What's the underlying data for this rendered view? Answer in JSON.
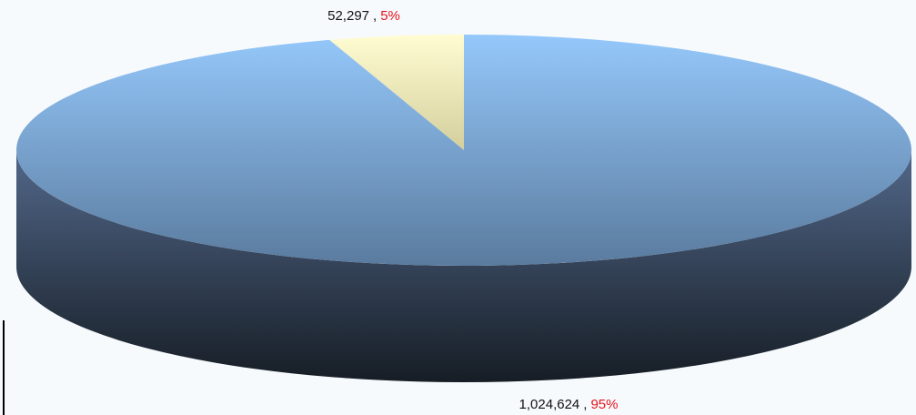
{
  "chart_data": {
    "type": "pie3d",
    "categories": [
      null,
      null
    ],
    "values": [
      52297,
      1024624
    ],
    "value_labels": [
      "52,297",
      "1,024,624"
    ],
    "percents": [
      5,
      95
    ],
    "percent_labels": [
      "5%",
      "95%"
    ],
    "label_separator": ",",
    "colors": [
      "#fff8c8",
      "#93c6f8"
    ],
    "percent_color": "#e8141c"
  }
}
